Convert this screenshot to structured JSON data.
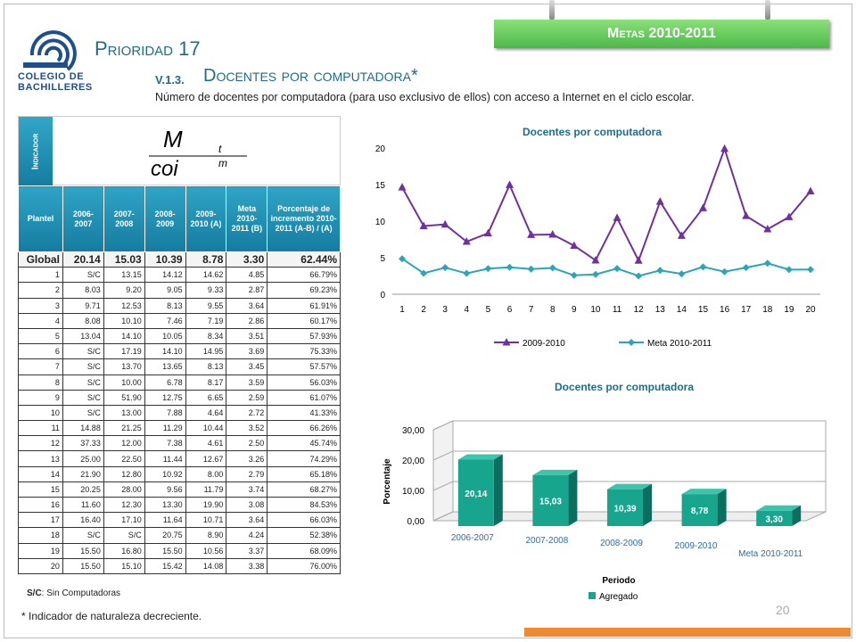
{
  "header": {
    "logo_line1": "COLEGIO DE",
    "logo_line2": "BACHILLERES",
    "banner": "Metas 2010-2011",
    "prioridad": "Prioridad 17",
    "section_id": "V.1.3.",
    "section_title": "Docentes por computadora*",
    "subtitle": "Número de docentes por computadora  (para uso exclusivo de ellos) con acceso a Internet en el ciclo escolar."
  },
  "indicator": {
    "label": "Indicador",
    "formula_num": "M",
    "formula_num_sub": "t",
    "formula_den": "coi",
    "formula_den_sub": "m"
  },
  "table": {
    "headers": [
      "Plantel",
      "2006-2007",
      "2007-2008",
      "2008-2009",
      "2009-2010 (A)",
      "Meta 2010-2011 (B)",
      "Porcentaje de incremento 2010-2011 (A-B) / (A)"
    ],
    "global": [
      "Global",
      "20.14",
      "15.03",
      "10.39",
      "8.78",
      "3.30",
      "62.44%"
    ],
    "rows": [
      [
        "1",
        "S/C",
        "13.15",
        "14.12",
        "14.62",
        "4.85",
        "66.79%"
      ],
      [
        "2",
        "8.03",
        "9.20",
        "9.05",
        "9.33",
        "2.87",
        "69.23%"
      ],
      [
        "3",
        "9.71",
        "12.53",
        "8.13",
        "9.55",
        "3.64",
        "61.91%"
      ],
      [
        "4",
        "8.08",
        "10.10",
        "7.46",
        "7.19",
        "2.86",
        "60.17%"
      ],
      [
        "5",
        "13.04",
        "14.10",
        "10.05",
        "8.34",
        "3.51",
        "57.93%"
      ],
      [
        "6",
        "S/C",
        "17.19",
        "14.10",
        "14.95",
        "3.69",
        "75.33%"
      ],
      [
        "7",
        "S/C",
        "13.70",
        "13.65",
        "8.13",
        "3.45",
        "57.57%"
      ],
      [
        "8",
        "S/C",
        "10.00",
        "6.78",
        "8.17",
        "3.59",
        "56.03%"
      ],
      [
        "9",
        "S/C",
        "51.90",
        "12.75",
        "6.65",
        "2.59",
        "61.07%"
      ],
      [
        "10",
        "S/C",
        "13.00",
        "7.88",
        "4.64",
        "2.72",
        "41.33%"
      ],
      [
        "11",
        "14.88",
        "21.25",
        "11.29",
        "10.44",
        "3.52",
        "66.26%"
      ],
      [
        "12",
        "37.33",
        "12.00",
        "7.38",
        "4.61",
        "2.50",
        "45.74%"
      ],
      [
        "13",
        "25.00",
        "22.50",
        "11.44",
        "12.67",
        "3.26",
        "74.29%"
      ],
      [
        "14",
        "21.90",
        "12.80",
        "10.92",
        "8.00",
        "2.79",
        "65.18%"
      ],
      [
        "15",
        "20.25",
        "28.00",
        "9.56",
        "11.79",
        "3.74",
        "68.27%"
      ],
      [
        "16",
        "11.60",
        "12.30",
        "13.30",
        "19.90",
        "3.08",
        "84.53%"
      ],
      [
        "17",
        "16.40",
        "17.10",
        "11.64",
        "10.71",
        "3.64",
        "66.03%"
      ],
      [
        "18",
        "S/C",
        "S/C",
        "20.75",
        "8.90",
        "4.24",
        "52.38%"
      ],
      [
        "19",
        "15.50",
        "16.80",
        "15.50",
        "10.56",
        "3.37",
        "68.09%"
      ],
      [
        "20",
        "15.50",
        "15.10",
        "15.42",
        "14.08",
        "3.38",
        "76.00%"
      ]
    ]
  },
  "notes": {
    "sc_bold": "S/C",
    "sc_text": ": Sin Computadoras",
    "footnote": "* Indicador de naturaleza decreciente.",
    "page_number": "20"
  },
  "colors": {
    "line_series_1": "#7030a0",
    "line_series_2": "#2aa6b8",
    "bar_face": "#18a58e",
    "bar_dark": "#0b6e5e",
    "banner_green": "#4cb84a",
    "header_blue": "#157ca0",
    "orange": "#f08a30"
  },
  "chart_data": [
    {
      "type": "line",
      "title": "Docentes por computadora",
      "x": [
        1,
        2,
        3,
        4,
        5,
        6,
        7,
        8,
        9,
        10,
        11,
        12,
        13,
        14,
        15,
        16,
        17,
        18,
        19,
        20
      ],
      "x_tick_labels": [
        "1",
        "2",
        "3",
        "4",
        "5",
        "6",
        "7",
        "8",
        "9",
        "10",
        "11",
        "12",
        "13",
        "14",
        "15",
        "16",
        "17",
        "18",
        "19",
        "20"
      ],
      "ylim": [
        0,
        20
      ],
      "y_ticks": [
        "0",
        "5",
        "10",
        "15",
        "20"
      ],
      "grid": false,
      "legend": "bottom",
      "series": [
        {
          "name": "2009-2010",
          "marker": "triangle",
          "values": [
            14.62,
            9.33,
            9.55,
            7.19,
            8.34,
            14.95,
            8.13,
            8.17,
            6.65,
            4.64,
            10.44,
            4.61,
            12.67,
            8.0,
            11.79,
            19.9,
            10.71,
            8.9,
            10.56,
            14.08
          ]
        },
        {
          "name": "Meta 2010-2011",
          "marker": "diamond",
          "values": [
            4.85,
            2.87,
            3.64,
            2.86,
            3.51,
            3.69,
            3.45,
            3.59,
            2.59,
            2.72,
            3.52,
            2.5,
            3.26,
            2.79,
            3.74,
            3.08,
            3.64,
            4.24,
            3.37,
            3.38
          ]
        }
      ]
    },
    {
      "type": "bar",
      "title": "Docentes por computadora",
      "categories": [
        "2006-2007",
        "2007-2008",
        "2008-2009",
        "2009-2010",
        "Meta 2010-2011"
      ],
      "values": [
        20.14,
        15.03,
        10.39,
        8.78,
        3.3
      ],
      "value_labels": [
        "20,14",
        "15,03",
        "10,39",
        "8,78",
        "3,30"
      ],
      "ylim": [
        0,
        30
      ],
      "y_ticks": [
        "0,00",
        "10,00",
        "20,00",
        "30,00"
      ],
      "xlabel": "Periodo",
      "ylabel": "Porcentaje",
      "legend": "bottom",
      "series_name": "Agregado",
      "grid": true
    }
  ]
}
